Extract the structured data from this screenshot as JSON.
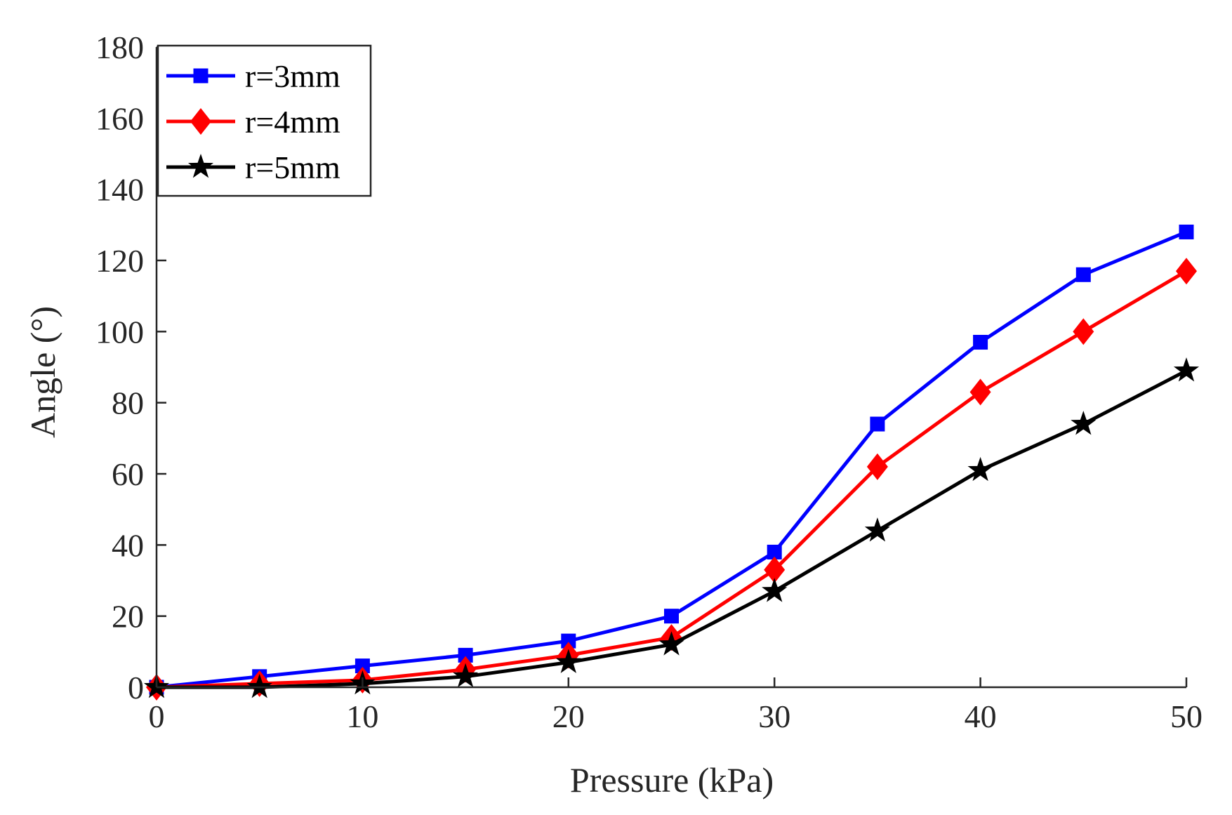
{
  "chart_data": {
    "type": "line",
    "title": "",
    "xlabel": "Pressure (kPa)",
    "ylabel": "Angle (°)",
    "x": [
      0,
      5,
      10,
      15,
      20,
      25,
      30,
      35,
      40,
      45,
      50
    ],
    "xlim": [
      0,
      50
    ],
    "ylim": [
      0,
      180
    ],
    "xticks": [
      0,
      10,
      20,
      30,
      40,
      50
    ],
    "xtick_labels": [
      "0",
      "10",
      "20",
      "30",
      "40",
      "50"
    ],
    "yticks": [
      0,
      20,
      40,
      60,
      80,
      100,
      120,
      140,
      160,
      180
    ],
    "ytick_labels": [
      "0",
      "20",
      "40",
      "60",
      "80",
      "100",
      "120",
      "140",
      "160",
      "180"
    ],
    "grid": false,
    "legend_position": "top-left",
    "series": [
      {
        "name": "r=3mm",
        "color": "#0000ff",
        "marker": "square",
        "values": [
          0,
          3,
          6,
          9,
          13,
          20,
          38,
          74,
          97,
          116,
          128
        ]
      },
      {
        "name": "r=4mm",
        "color": "#ff0000",
        "marker": "diamond",
        "values": [
          0,
          1,
          2,
          5,
          9,
          14,
          33,
          62,
          83,
          100,
          117
        ]
      },
      {
        "name": "r=5mm",
        "color": "#000000",
        "marker": "star",
        "values": [
          0,
          0,
          1,
          3,
          7,
          12,
          27,
          44,
          61,
          74,
          89
        ]
      }
    ]
  }
}
